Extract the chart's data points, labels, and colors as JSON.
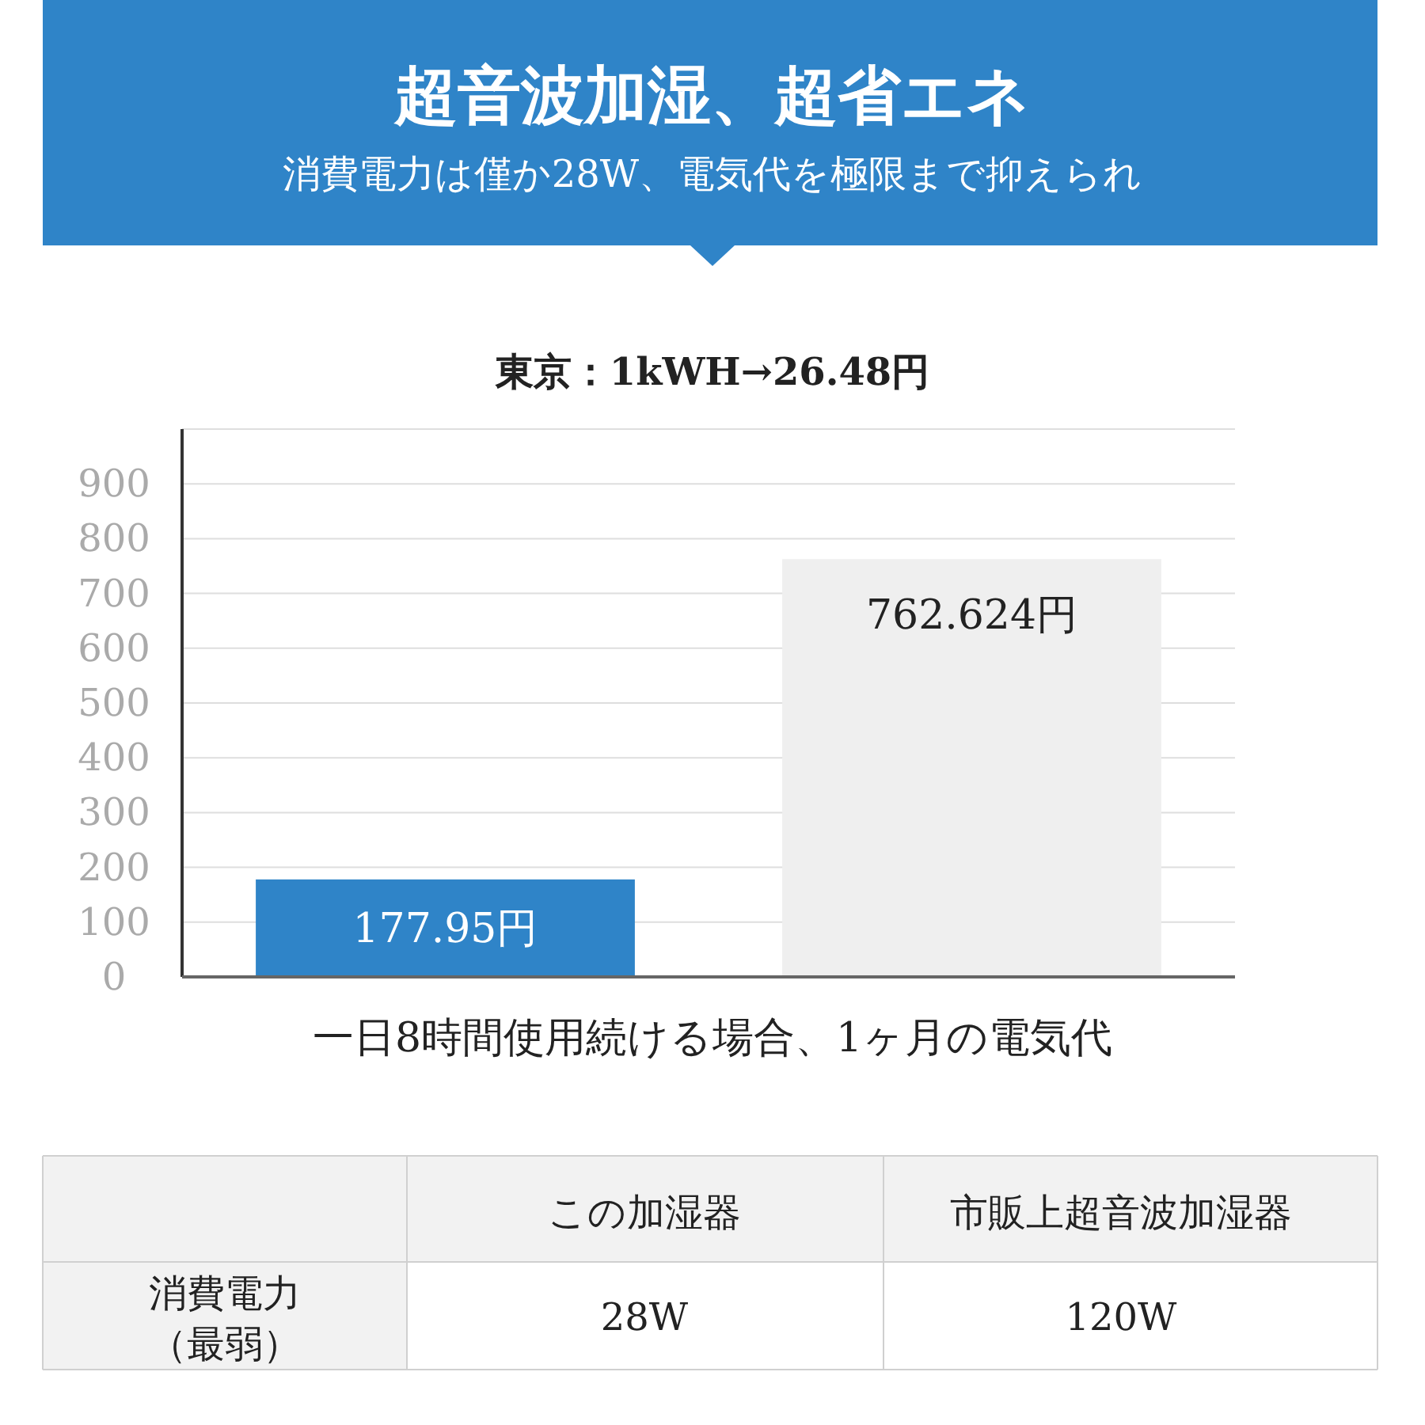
{
  "chart_data": [
    {
      "type": "bar",
      "title": "超音波加湿、超省エネ",
      "subtitle": "消費電力は僅か28W、電気代を極限まで抑えられ",
      "annotations": [
        "東京：1kWH→26.48円"
      ],
      "xlabel": "一日8時間使用続ける場合、1ヶ月の電気代",
      "categories": [
        null,
        null
      ],
      "values": [
        177.95,
        762.624
      ],
      "colors": [
        "#2f84c8",
        "#efefef"
      ],
      "value_labels": [
        "177.95円",
        "762.624円"
      ],
      "ylim": [
        0,
        1000
      ],
      "yticks": [
        0,
        100,
        200,
        300,
        400,
        500,
        600,
        700,
        800,
        900,
        {
          "value": 1000,
          "label": null
        }
      ],
      "grid": "y"
    },
    {
      "type": "other",
      "annotations": [
        "この加湿器",
        "市販上超音波加湿器",
        "消費電力",
        "（最弱）",
        "28W",
        "120W"
      ]
    }
  ]
}
